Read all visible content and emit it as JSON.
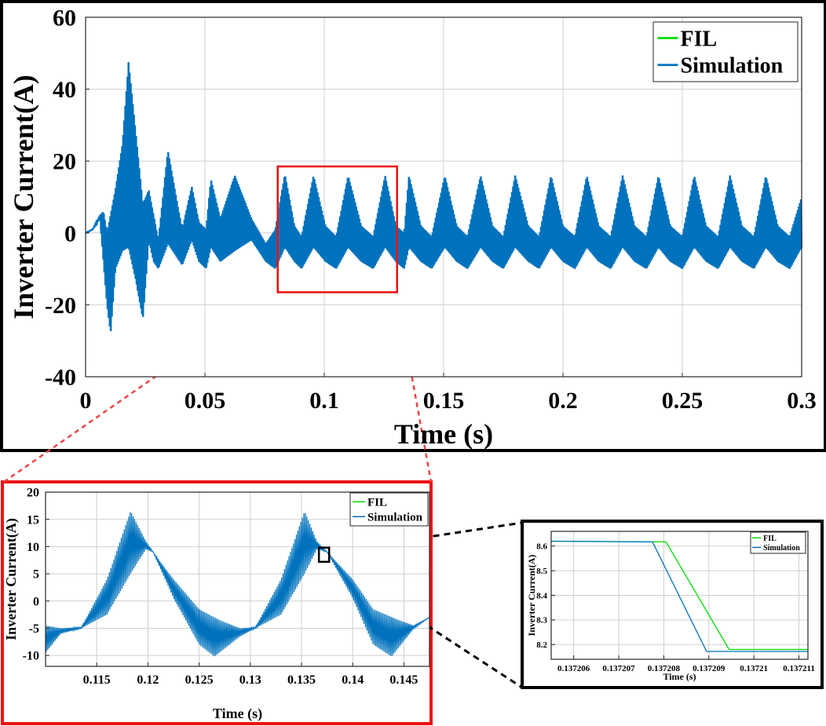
{
  "colors": {
    "fil": "#00dd00",
    "simulation": "#0072bd",
    "zoom_box": "#ee1111",
    "detail_box": "#000000"
  },
  "chart_data": [
    {
      "id": "main",
      "type": "line",
      "xlabel": "Time (s)",
      "ylabel": "Inverter Current(A)",
      "xlim": [
        0,
        0.3
      ],
      "ylim": [
        -40,
        60
      ],
      "xticks": [
        "0",
        "0.05",
        "0.1",
        "0.15",
        "0.2",
        "0.25",
        "0.3"
      ],
      "xtick_values": [
        0,
        0.05,
        0.1,
        0.15,
        0.2,
        0.25,
        0.3
      ],
      "yticks": [
        "-40",
        "-20",
        "0",
        "20",
        "40",
        "60"
      ],
      "ytick_values": [
        -40,
        -20,
        0,
        20,
        40,
        60
      ],
      "grid": true,
      "legend_position": "top-right",
      "series": [
        {
          "name": "FIL",
          "color_key": "fil"
        },
        {
          "name": "Simulation",
          "color_key": "simulation",
          "upper_envelope": {
            "x": [
              0,
              0.003,
              0.006,
              0.0075,
              0.009,
              0.0125,
              0.0155,
              0.018,
              0.021,
              0.024,
              0.0265,
              0.0285,
              0.0305,
              0.0345,
              0.0385,
              0.0405,
              0.0445,
              0.0475,
              0.0505,
              0.0525,
              0.0565,
              0.0625,
              0.0695,
              0.0755,
              0.0795,
              0.0835,
              0.0875,
              0.0905,
              0.0955,
              0.1005,
              0.105,
              0.11,
              0.1155,
              0.1205,
              0.1255,
              0.13,
              0.1335,
              0.1355,
              0.1405,
              0.145,
              0.1505,
              0.1555,
              0.16,
              0.1655,
              0.1705,
              0.175,
              0.18,
              0.1855,
              0.19,
              0.195,
              0.2,
              0.205,
              0.21,
              0.215,
              0.22,
              0.225,
              0.23,
              0.235,
              0.24,
              0.245,
              0.25,
              0.255,
              0.26,
              0.265,
              0.27,
              0.275,
              0.28,
              0.285,
              0.29,
              0.295,
              0.3
            ],
            "y": [
              0,
              1,
              5,
              6,
              0,
              12,
              25,
              47.5,
              28,
              8,
              12,
              5,
              -2,
              23,
              8,
              1,
              13,
              3,
              1,
              15,
              4,
              16,
              4,
              -3,
              1,
              16.5,
              2,
              -1,
              16,
              2,
              -1,
              16,
              2,
              -1,
              16,
              2,
              0,
              16,
              2,
              -1,
              16,
              2,
              -1,
              16,
              2,
              -1,
              16,
              2,
              -1,
              16,
              2,
              -1,
              16,
              2,
              -1,
              16,
              2,
              -1,
              16,
              2,
              -1,
              16,
              2,
              -1,
              16,
              2,
              -1,
              16,
              2,
              -1,
              10
            ]
          },
          "lower_envelope": {
            "x": [
              0,
              0.003,
              0.006,
              0.009,
              0.0105,
              0.0125,
              0.0155,
              0.018,
              0.021,
              0.024,
              0.0265,
              0.0285,
              0.0305,
              0.0345,
              0.0385,
              0.0405,
              0.0445,
              0.0475,
              0.0505,
              0.0525,
              0.0565,
              0.0625,
              0.0695,
              0.0755,
              0.0795,
              0.0835,
              0.0875,
              0.0905,
              0.0955,
              0.1005,
              0.105,
              0.11,
              0.1155,
              0.1205,
              0.1255,
              0.13,
              0.1335,
              0.1355,
              0.1405,
              0.145,
              0.1505,
              0.1555,
              0.16,
              0.1655,
              0.1705,
              0.175,
              0.18,
              0.1855,
              0.19,
              0.195,
              0.2,
              0.205,
              0.21,
              0.215,
              0.22,
              0.225,
              0.23,
              0.235,
              0.24,
              0.245,
              0.25,
              0.255,
              0.26,
              0.265,
              0.27,
              0.275,
              0.28,
              0.285,
              0.29,
              0.295,
              0.3
            ],
            "y": [
              0,
              1,
              4,
              -20,
              -28,
              -10,
              -5,
              -4,
              -13,
              -24,
              -2,
              -8,
              -10,
              -3,
              -7,
              -9,
              -2,
              -8,
              -10,
              -4,
              -8,
              -5,
              -2,
              -8,
              -10,
              -4,
              -8,
              -10,
              -4,
              -8,
              -10,
              -4,
              -8,
              -10,
              -4,
              -8,
              -10,
              -4,
              -8,
              -10,
              -4,
              -8,
              -10,
              -4,
              -8,
              -10,
              -4,
              -8,
              -10,
              -4,
              -8,
              -10,
              -4,
              -8,
              -10,
              -4,
              -8,
              -10,
              -4,
              -8,
              -10,
              -4,
              -8,
              -10,
              -4,
              -8,
              -10,
              -4,
              -8,
              -10,
              -4
            ]
          }
        }
      ],
      "zoom_region": {
        "x": [
          0.0805,
          0.1305
        ],
        "y": [
          -16.5,
          18.5
        ]
      }
    },
    {
      "id": "zoom",
      "type": "line",
      "xlabel": "Time (s)",
      "ylabel": "Inverter Current(A)",
      "xlim": [
        0.11,
        0.1475
      ],
      "ylim": [
        -12,
        20
      ],
      "xticks": [
        "0.115",
        "0.12",
        "0.125",
        "0.13",
        "0.135",
        "0.14",
        "0.145"
      ],
      "xtick_values": [
        0.115,
        0.12,
        0.125,
        0.13,
        0.135,
        0.14,
        0.145
      ],
      "yticks": [
        "-10",
        "-5",
        "0",
        "5",
        "10",
        "15",
        "20"
      ],
      "ytick_values": [
        -10,
        -5,
        0,
        5,
        10,
        15,
        20
      ],
      "grid": true,
      "legend_position": "top-right",
      "series": [
        {
          "name": "FIL",
          "color_key": "fil"
        },
        {
          "name": "Simulation",
          "color_key": "simulation",
          "upper_envelope": {
            "x": [
              0.11,
              0.1115,
              0.1135,
              0.116,
              0.1183,
              0.1198,
              0.1205,
              0.1225,
              0.125,
              0.127,
              0.129,
              0.1305,
              0.133,
              0.1353,
              0.1365,
              0.1375,
              0.14,
              0.142,
              0.1445,
              0.146,
              0.1475
            ],
            "y": [
              -4.5,
              -5,
              -4.8,
              4,
              16.5,
              11,
              9,
              4,
              -1.5,
              -3.5,
              -5,
              -4.8,
              4,
              16.5,
              11,
              9,
              4,
              -1.5,
              -3.5,
              -4.5,
              -3
            ]
          },
          "lower_envelope": {
            "x": [
              0.11,
              0.1115,
              0.1135,
              0.116,
              0.1183,
              0.1198,
              0.1205,
              0.1225,
              0.125,
              0.1265,
              0.129,
              0.1305,
              0.133,
              0.1353,
              0.1365,
              0.1375,
              0.14,
              0.142,
              0.1438,
              0.146,
              0.1475
            ],
            "y": [
              -9.5,
              -6,
              -5,
              -2.5,
              5,
              9.5,
              9,
              0.5,
              -8,
              -10.2,
              -6.5,
              -5,
              -2.5,
              5,
              9.5,
              9,
              0.5,
              -8,
              -10.2,
              -5,
              -3
            ]
          }
        }
      ],
      "zoom_region": {
        "x": [
          0.1367,
          0.1377
        ],
        "y": [
          7.2,
          9.8
        ]
      }
    },
    {
      "id": "detail",
      "type": "line",
      "xlabel": "Time (s)",
      "ylabel": "Inverter Current(A)",
      "xlim": [
        0.1372055,
        0.1372112
      ],
      "ylim": [
        8.14,
        8.66
      ],
      "xticks": [
        "0.137206",
        "0.137207",
        "0.137208",
        "0.137209",
        "0.13721",
        "0.137211"
      ],
      "xtick_values": [
        0.137206,
        0.137207,
        0.137208,
        0.137209,
        0.13721,
        0.137211
      ],
      "yticks": [
        "8.2",
        "8.3",
        "8.4",
        "8.5",
        "8.6"
      ],
      "ytick_values": [
        8.2,
        8.3,
        8.4,
        8.5,
        8.6
      ],
      "grid": true,
      "legend_position": "top-right",
      "series": [
        {
          "name": "FIL",
          "color_key": "fil",
          "x": [
            0.1372055,
            0.13720805,
            0.13720945,
            0.1372112
          ],
          "y": [
            8.62,
            8.617,
            8.18,
            8.18
          ]
        },
        {
          "name": "Simulation",
          "color_key": "simulation",
          "x": [
            0.1372055,
            0.13720775,
            0.13720895,
            0.1372112
          ],
          "y": [
            8.62,
            8.617,
            8.172,
            8.172
          ]
        }
      ]
    }
  ]
}
